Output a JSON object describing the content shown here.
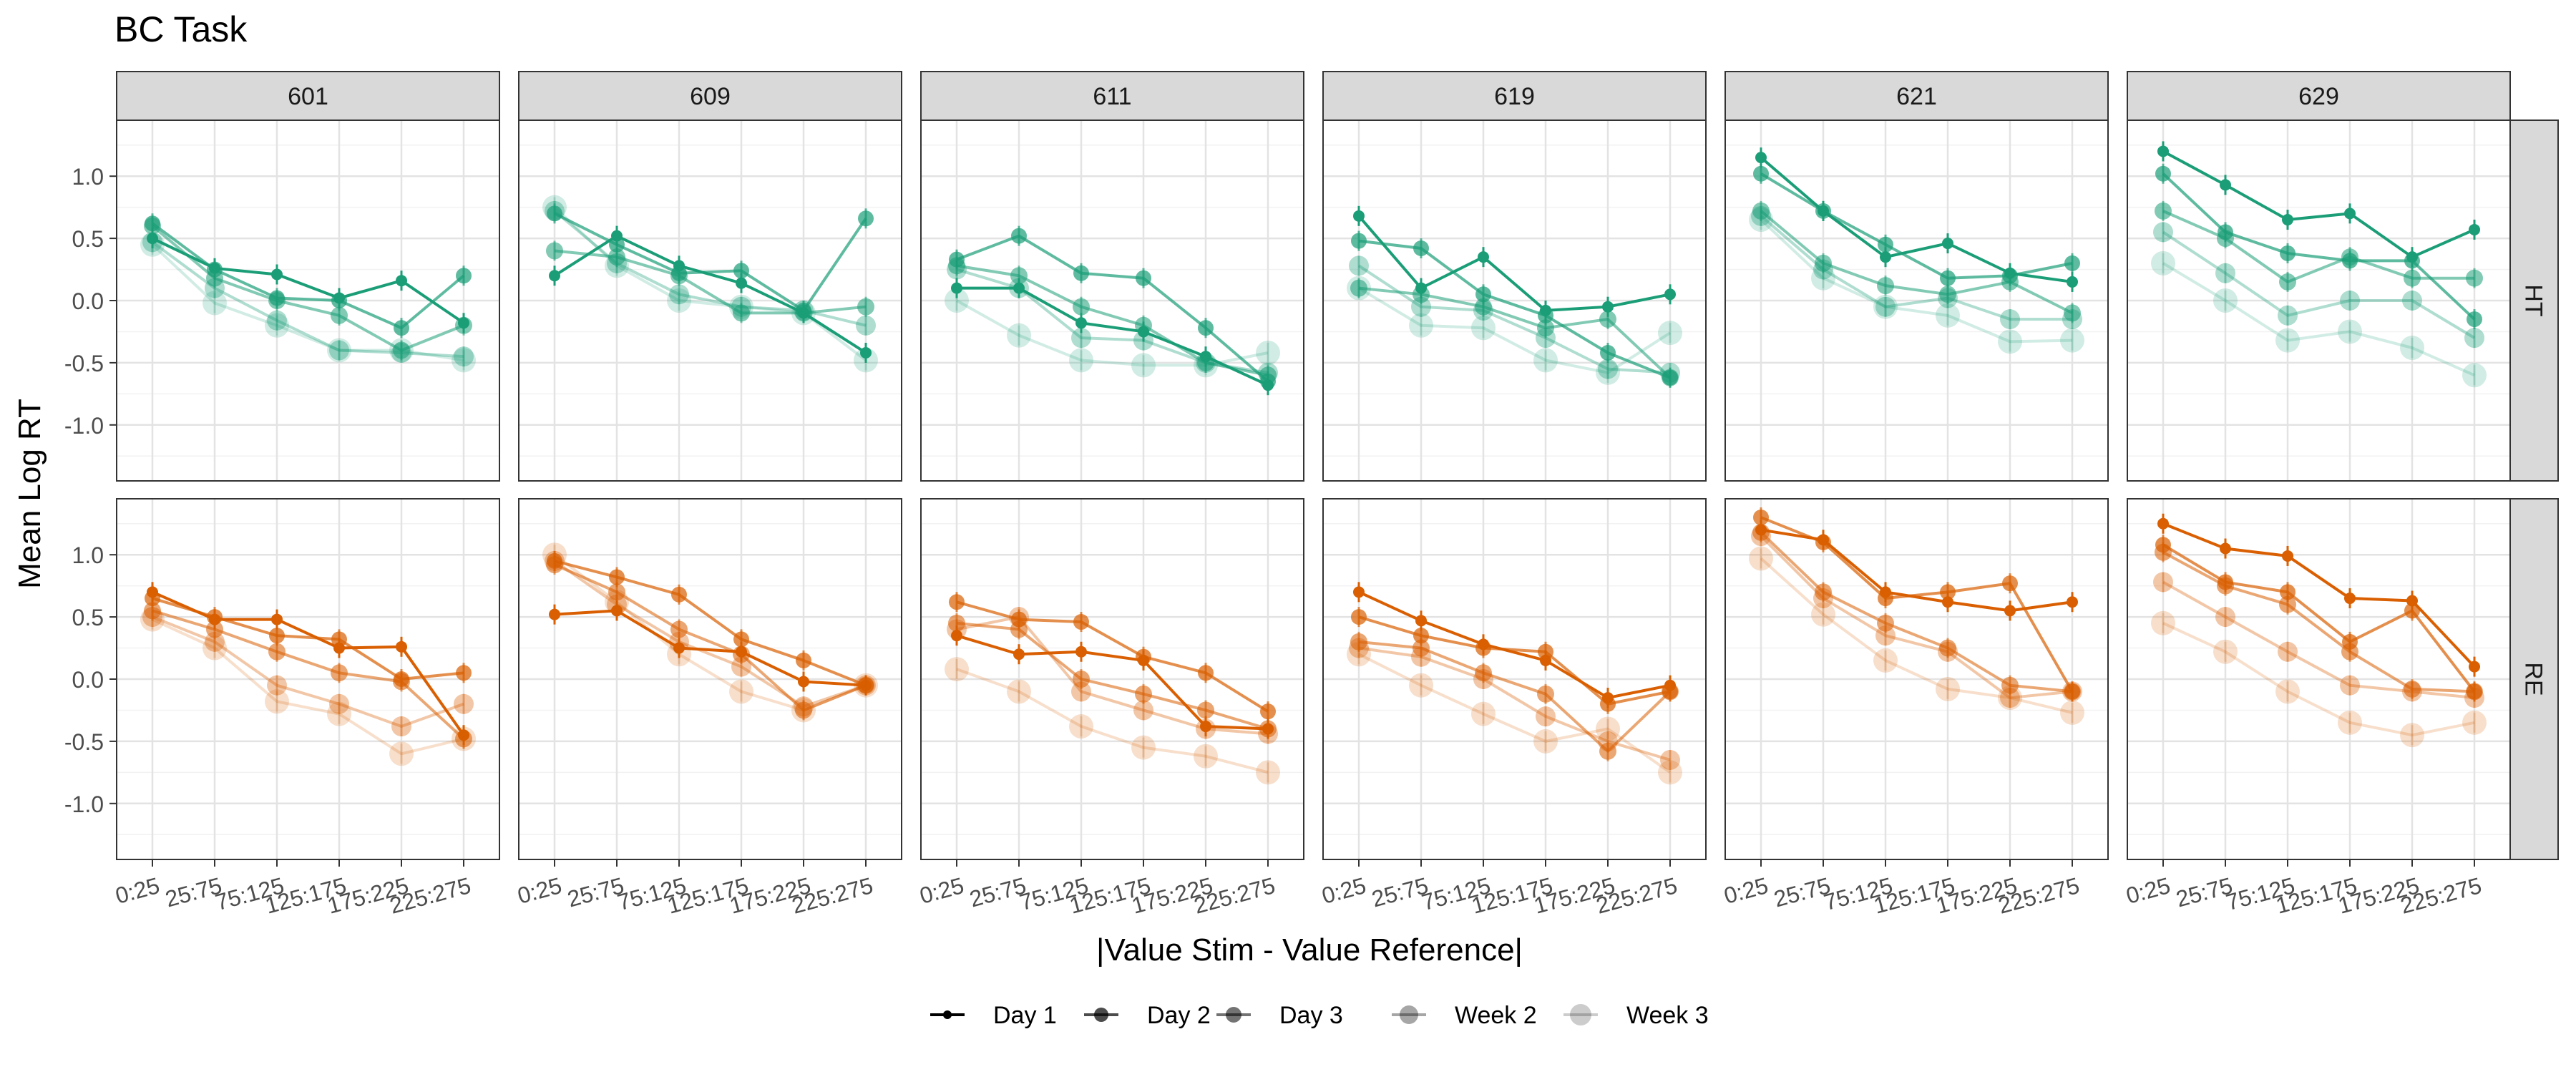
{
  "chart_data": {
    "type": "line",
    "title": "BC Task",
    "xlabel": "|Value Stim - Value Reference|",
    "ylabel": "Mean Log RT",
    "categories": [
      "0:25",
      "25:75",
      "75:125",
      "125:175",
      "175:225",
      "225:275"
    ],
    "yticks": [
      "1.0",
      "0.5",
      "0.0",
      "-0.5",
      "-1.0"
    ],
    "ytick_values": [
      1.0,
      0.5,
      0.0,
      -0.5,
      -1.0
    ],
    "ylim": [
      -1.45,
      1.45
    ],
    "grid": true,
    "legend_position": "bottom",
    "facet_cols": [
      "601",
      "609",
      "611",
      "619",
      "621",
      "629"
    ],
    "facet_rows": [
      "HT",
      "RE"
    ],
    "row_colors": {
      "HT": "#1B9E77",
      "RE": "#D95F02"
    },
    "series_names": [
      "Day 1",
      "Day 2",
      "Day 3",
      "Week 2",
      "Week 3"
    ],
    "series_alpha": [
      1.0,
      0.7,
      0.55,
      0.35,
      0.2
    ],
    "panels": [
      {
        "row": "HT",
        "col": "601",
        "series": [
          {
            "name": "Day 1",
            "values": [
              0.5,
              0.26,
              0.21,
              0.02,
              0.16,
              -0.18
            ]
          },
          {
            "name": "Day 2",
            "values": [
              0.62,
              0.25,
              0.02,
              0.0,
              -0.22,
              0.2
            ]
          },
          {
            "name": "Day 3",
            "values": [
              0.6,
              0.18,
              0.0,
              -0.12,
              -0.4,
              -0.2
            ]
          },
          {
            "name": "Week 2",
            "values": [
              0.47,
              0.1,
              -0.16,
              -0.4,
              -0.42,
              -0.45
            ]
          },
          {
            "name": "Week 3",
            "values": [
              0.45,
              -0.02,
              -0.2,
              -0.4,
              -0.4,
              -0.48
            ]
          }
        ]
      },
      {
        "row": "HT",
        "col": "609",
        "series": [
          {
            "name": "Day 1",
            "values": [
              0.2,
              0.52,
              0.28,
              0.14,
              -0.1,
              -0.42
            ]
          },
          {
            "name": "Day 2",
            "values": [
              0.7,
              0.45,
              0.22,
              0.24,
              -0.08,
              0.66
            ]
          },
          {
            "name": "Day 3",
            "values": [
              0.4,
              0.35,
              0.2,
              -0.1,
              -0.1,
              -0.05
            ]
          },
          {
            "name": "Week 2",
            "values": [
              0.72,
              0.3,
              0.05,
              -0.05,
              -0.08,
              -0.2
            ]
          },
          {
            "name": "Week 3",
            "values": [
              0.75,
              0.28,
              0.0,
              -0.05,
              -0.1,
              -0.48
            ]
          }
        ]
      },
      {
        "row": "HT",
        "col": "611",
        "series": [
          {
            "name": "Day 1",
            "values": [
              0.1,
              0.1,
              -0.18,
              -0.25,
              -0.45,
              -0.68
            ]
          },
          {
            "name": "Day 2",
            "values": [
              0.33,
              0.52,
              0.22,
              0.18,
              -0.22,
              -0.65
            ]
          },
          {
            "name": "Day 3",
            "values": [
              0.28,
              0.2,
              -0.05,
              -0.2,
              -0.5,
              -0.6
            ]
          },
          {
            "name": "Week 2",
            "values": [
              0.25,
              0.1,
              -0.3,
              -0.32,
              -0.5,
              -0.58
            ]
          },
          {
            "name": "Week 3",
            "values": [
              0.0,
              -0.28,
              -0.48,
              -0.52,
              -0.52,
              -0.42
            ]
          }
        ]
      },
      {
        "row": "HT",
        "col": "619",
        "series": [
          {
            "name": "Day 1",
            "values": [
              0.68,
              0.1,
              0.35,
              -0.08,
              -0.05,
              0.05
            ]
          },
          {
            "name": "Day 2",
            "values": [
              0.48,
              0.42,
              0.05,
              -0.12,
              -0.42,
              -0.62
            ]
          },
          {
            "name": "Day 3",
            "values": [
              0.1,
              0.05,
              -0.05,
              -0.22,
              -0.15,
              -0.62
            ]
          },
          {
            "name": "Week 2",
            "values": [
              0.28,
              -0.05,
              -0.08,
              -0.3,
              -0.55,
              -0.58
            ]
          },
          {
            "name": "Week 3",
            "values": [
              0.1,
              -0.2,
              -0.22,
              -0.48,
              -0.58,
              -0.26
            ]
          }
        ]
      },
      {
        "row": "HT",
        "col": "621",
        "series": [
          {
            "name": "Day 1",
            "values": [
              1.15,
              0.72,
              0.35,
              0.46,
              0.22,
              0.15
            ]
          },
          {
            "name": "Day 2",
            "values": [
              1.02,
              0.72,
              0.45,
              0.18,
              0.2,
              0.3
            ]
          },
          {
            "name": "Day 3",
            "values": [
              0.72,
              0.3,
              0.12,
              0.05,
              0.15,
              -0.1
            ]
          },
          {
            "name": "Week 2",
            "values": [
              0.68,
              0.25,
              -0.05,
              0.02,
              -0.15,
              -0.15
            ]
          },
          {
            "name": "Week 3",
            "values": [
              0.65,
              0.18,
              -0.05,
              -0.12,
              -0.33,
              -0.32
            ]
          }
        ]
      },
      {
        "row": "HT",
        "col": "629",
        "series": [
          {
            "name": "Day 1",
            "values": [
              1.2,
              0.93,
              0.65,
              0.7,
              0.35,
              0.57
            ]
          },
          {
            "name": "Day 2",
            "values": [
              1.02,
              0.55,
              0.38,
              0.32,
              0.32,
              -0.15
            ]
          },
          {
            "name": "Day 3",
            "values": [
              0.72,
              0.5,
              0.15,
              0.35,
              0.18,
              0.18
            ]
          },
          {
            "name": "Week 2",
            "values": [
              0.55,
              0.22,
              -0.12,
              0.0,
              0.0,
              -0.3
            ]
          },
          {
            "name": "Week 3",
            "values": [
              0.3,
              0.0,
              -0.32,
              -0.25,
              -0.38,
              -0.6
            ]
          }
        ]
      },
      {
        "row": "RE",
        "col": "601",
        "series": [
          {
            "name": "Day 1",
            "values": [
              0.7,
              0.48,
              0.48,
              0.25,
              0.26,
              -0.45
            ]
          },
          {
            "name": "Day 2",
            "values": [
              0.65,
              0.5,
              0.35,
              0.32,
              0.0,
              0.05
            ]
          },
          {
            "name": "Day 3",
            "values": [
              0.55,
              0.4,
              0.22,
              0.05,
              -0.02,
              -0.48
            ]
          },
          {
            "name": "Week 2",
            "values": [
              0.5,
              0.3,
              -0.05,
              -0.2,
              -0.38,
              -0.2
            ]
          },
          {
            "name": "Week 3",
            "values": [
              0.48,
              0.25,
              -0.18,
              -0.28,
              -0.6,
              -0.48
            ]
          }
        ]
      },
      {
        "row": "RE",
        "col": "609",
        "series": [
          {
            "name": "Day 1",
            "values": [
              0.52,
              0.55,
              0.25,
              0.22,
              -0.02,
              -0.05
            ]
          },
          {
            "name": "Day 2",
            "values": [
              0.95,
              0.82,
              0.68,
              0.32,
              0.15,
              -0.05
            ]
          },
          {
            "name": "Day 3",
            "values": [
              0.92,
              0.7,
              0.4,
              0.2,
              -0.25,
              -0.05
            ]
          },
          {
            "name": "Week 2",
            "values": [
              0.95,
              0.6,
              0.3,
              0.1,
              -0.22,
              -0.05
            ]
          },
          {
            "name": "Week 3",
            "values": [
              1.0,
              0.62,
              0.2,
              -0.1,
              -0.25,
              -0.05
            ]
          }
        ]
      },
      {
        "row": "RE",
        "col": "611",
        "series": [
          {
            "name": "Day 1",
            "values": [
              0.35,
              0.2,
              0.22,
              0.15,
              -0.38,
              -0.4
            ]
          },
          {
            "name": "Day 2",
            "values": [
              0.62,
              0.48,
              0.46,
              0.18,
              0.05,
              -0.26
            ]
          },
          {
            "name": "Day 3",
            "values": [
              0.45,
              0.4,
              0.0,
              -0.12,
              -0.25,
              -0.4
            ]
          },
          {
            "name": "Week 2",
            "values": [
              0.4,
              0.5,
              -0.1,
              -0.25,
              -0.4,
              -0.44
            ]
          },
          {
            "name": "Week 3",
            "values": [
              0.08,
              -0.1,
              -0.38,
              -0.55,
              -0.62,
              -0.75
            ]
          }
        ]
      },
      {
        "row": "RE",
        "col": "619",
        "series": [
          {
            "name": "Day 1",
            "values": [
              0.7,
              0.47,
              0.28,
              0.15,
              -0.15,
              -0.05
            ]
          },
          {
            "name": "Day 2",
            "values": [
              0.5,
              0.35,
              0.25,
              0.22,
              -0.2,
              -0.1
            ]
          },
          {
            "name": "Day 3",
            "values": [
              0.3,
              0.25,
              0.05,
              -0.12,
              -0.58,
              -0.1
            ]
          },
          {
            "name": "Week 2",
            "values": [
              0.25,
              0.18,
              0.0,
              -0.3,
              -0.5,
              -0.65
            ]
          },
          {
            "name": "Week 3",
            "values": [
              0.2,
              -0.05,
              -0.28,
              -0.5,
              -0.4,
              -0.75
            ]
          }
        ]
      },
      {
        "row": "RE",
        "col": "621",
        "series": [
          {
            "name": "Day 1",
            "values": [
              1.2,
              1.12,
              0.7,
              0.62,
              0.55,
              0.62
            ]
          },
          {
            "name": "Day 2",
            "values": [
              1.3,
              1.1,
              0.65,
              0.7,
              0.77,
              -0.1
            ]
          },
          {
            "name": "Day 3",
            "values": [
              1.18,
              0.7,
              0.45,
              0.25,
              -0.05,
              -0.1
            ]
          },
          {
            "name": "Week 2",
            "values": [
              1.15,
              0.65,
              0.35,
              0.22,
              -0.15,
              -0.1
            ]
          },
          {
            "name": "Week 3",
            "values": [
              0.97,
              0.52,
              0.15,
              -0.08,
              -0.15,
              -0.27
            ]
          }
        ]
      },
      {
        "row": "RE",
        "col": "629",
        "series": [
          {
            "name": "Day 1",
            "values": [
              1.25,
              1.05,
              0.99,
              0.65,
              0.63,
              0.1
            ]
          },
          {
            "name": "Day 2",
            "values": [
              1.08,
              0.78,
              0.7,
              0.3,
              0.55,
              -0.1
            ]
          },
          {
            "name": "Day 3",
            "values": [
              1.02,
              0.75,
              0.6,
              0.22,
              -0.08,
              -0.1
            ]
          },
          {
            "name": "Week 2",
            "values": [
              0.78,
              0.5,
              0.22,
              -0.05,
              -0.1,
              -0.15
            ]
          },
          {
            "name": "Week 3",
            "values": [
              0.45,
              0.22,
              -0.1,
              -0.35,
              -0.45,
              -0.35
            ]
          }
        ]
      }
    ]
  }
}
